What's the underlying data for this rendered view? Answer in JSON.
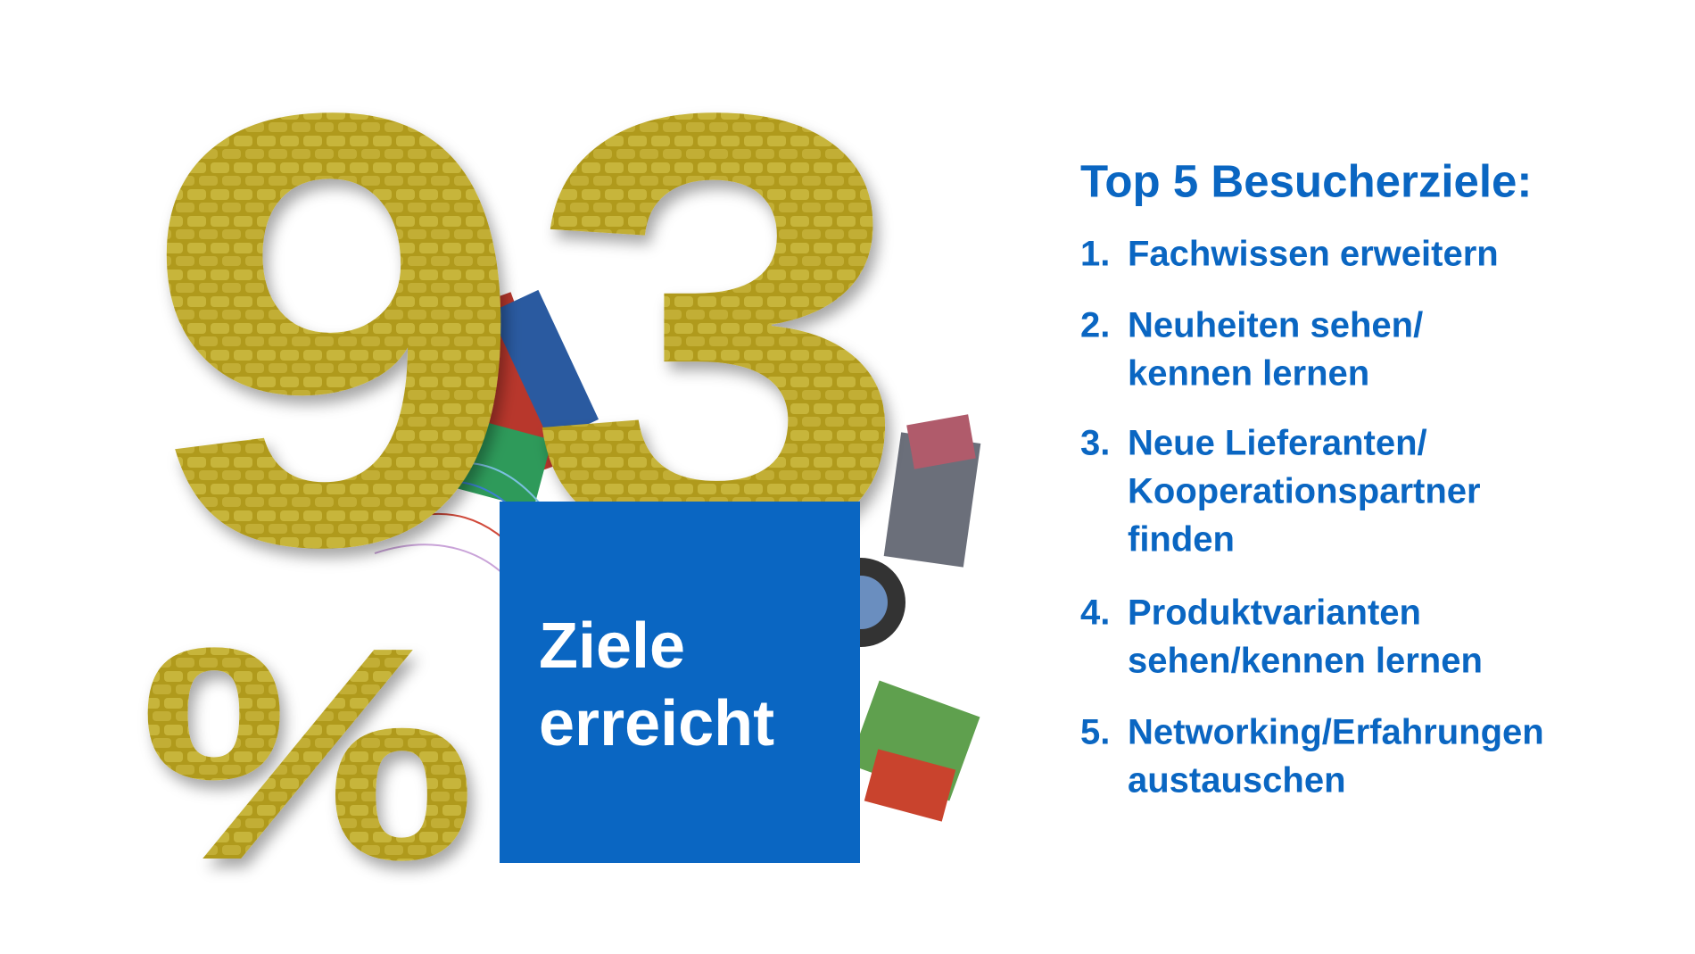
{
  "stat": {
    "digits": "93",
    "unit": "%",
    "caption": [
      "Ziele",
      "erreicht"
    ]
  },
  "list": {
    "title": "Top 5 Besucherziele:",
    "items": [
      {
        "number": "1.",
        "lines": [
          "Fachwissen erweitern"
        ]
      },
      {
        "number": "2.",
        "lines": [
          "Neuheiten sehen/",
          "kennen lernen"
        ]
      },
      {
        "number": "3.",
        "lines": [
          "Neue Lieferanten/",
          "Kooperationspartner",
          "finden"
        ]
      },
      {
        "number": "4.",
        "lines": [
          "Produktvarianten",
          "sehen/kennen lernen"
        ]
      },
      {
        "number": "5.",
        "lines": [
          "Networking/Erfahrungen",
          "austauschen"
        ]
      }
    ]
  }
}
